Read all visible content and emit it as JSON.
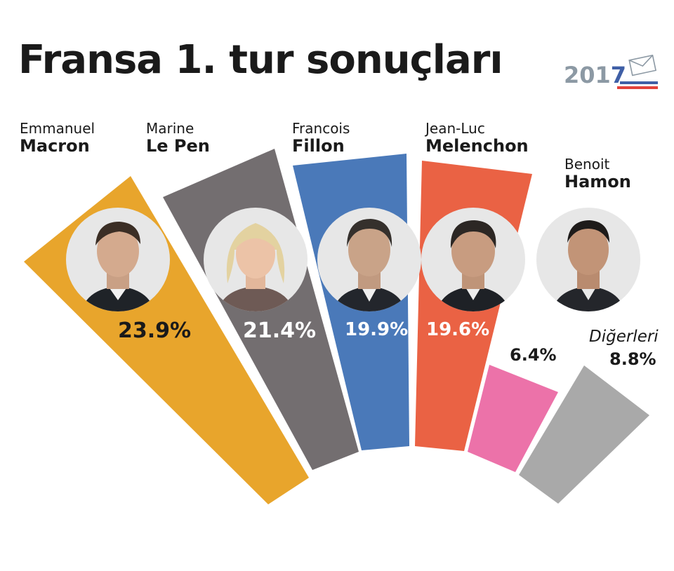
{
  "title": "Fransa 1. tur sonuçları",
  "badge": {
    "year": "2017",
    "year_prefix": "201",
    "year_suffix": "7"
  },
  "colors": {
    "macron": "#e8a52c",
    "lepen": "#736e70",
    "fillon": "#4a79b9",
    "melenchon": "#ea6244",
    "hamon": "#ec72a9",
    "others": "#a9a9a9",
    "badge_gray": "#8c99a4",
    "badge_blue": "#3f5fa6",
    "badge_red": "#e3423b"
  },
  "candidates": [
    {
      "first": "Emmanuel",
      "last": "Macron",
      "percent": "23.9%"
    },
    {
      "first": "Marine",
      "last": "Le Pen",
      "percent": "21.4%"
    },
    {
      "first": "Francois",
      "last": "Fillon",
      "percent": "19.9%"
    },
    {
      "first": "Jean-Luc",
      "last": "Melenchon",
      "percent": "19.6%"
    },
    {
      "first": "Benoit",
      "last": "Hamon",
      "percent": "6.4%"
    }
  ],
  "others": {
    "label": "Diğerleri",
    "percent": "8.8%"
  },
  "chart_data": {
    "type": "bar",
    "title": "Fransa 1. tur sonuçları",
    "categories": [
      "Emmanuel Macron",
      "Marine Le Pen",
      "Francois Fillon",
      "Jean-Luc Melenchon",
      "Benoit Hamon",
      "Diğerleri"
    ],
    "values": [
      23.9,
      21.4,
      19.9,
      19.6,
      6.4,
      8.8
    ],
    "unit": "%",
    "layout": "radial semicircle, bar length proportional to value"
  }
}
